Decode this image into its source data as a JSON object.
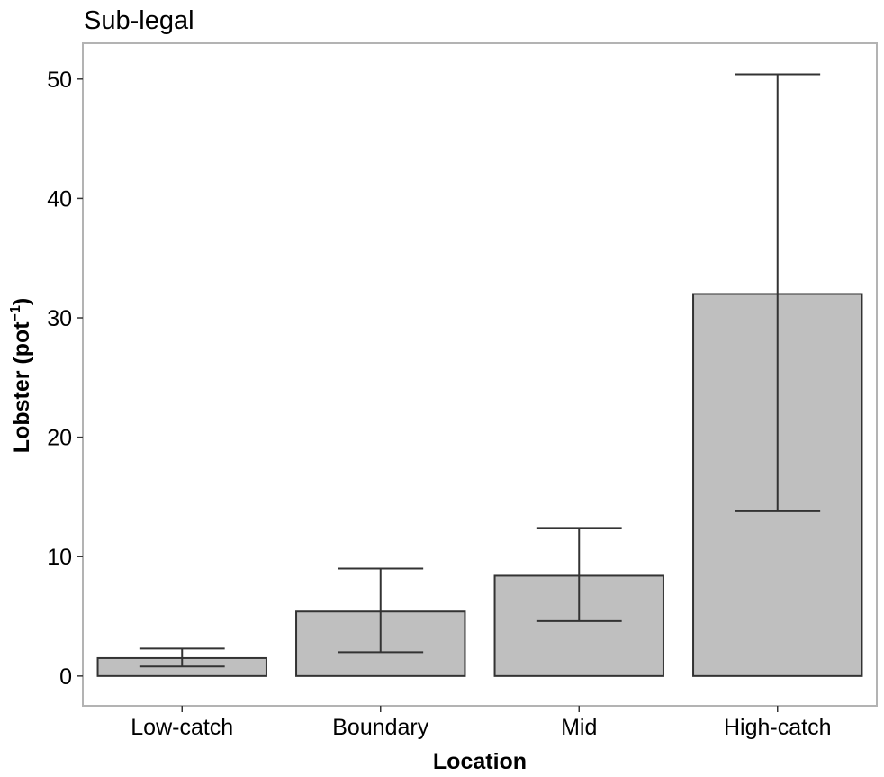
{
  "chart_data": {
    "type": "bar",
    "title": "Sub-legal",
    "xlabel": "Location",
    "ylabel": {
      "main": "Lobster (pot",
      "superscript": "−1",
      "close": ")"
    },
    "categories": [
      "Low-catch",
      "Boundary",
      "Mid",
      "High-catch"
    ],
    "values": [
      1.5,
      5.4,
      8.4,
      32.0
    ],
    "error_low": [
      0.8,
      2.0,
      4.6,
      13.8
    ],
    "error_high": [
      2.3,
      9.0,
      12.4,
      50.4
    ],
    "ylim": [
      -2.5,
      53
    ],
    "yticks": [
      0,
      10,
      20,
      30,
      40,
      50
    ],
    "grid": false,
    "legend": "none",
    "colors": {
      "bar_fill": "#bfbfbf",
      "bar_stroke": "#333333"
    }
  }
}
